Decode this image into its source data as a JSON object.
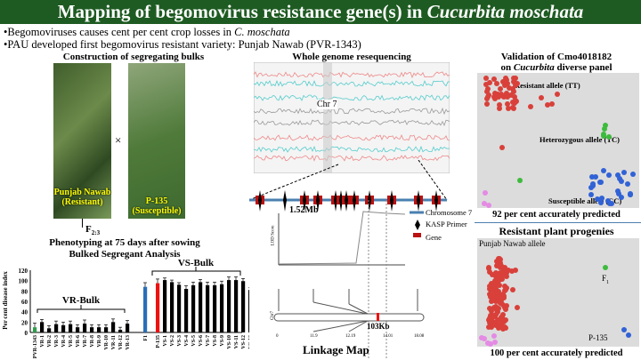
{
  "title": {
    "text_pre": "Mapping of begomovirus resistance gene(s) in ",
    "text_italic": "Cucurbita moschata"
  },
  "bullets": [
    {
      "pre": "•Begomoviruses causes cent per cent crop losses in ",
      "italic": "C. moschata",
      "post": ""
    },
    {
      "pre": "•PAU developed first begomovirus resistant variety: Punjab Nawab (PVR-1343)",
      "italic": "",
      "post": ""
    }
  ],
  "left": {
    "heading": "Construction of segregating bulks",
    "photo1_label": "Punjab Nawab (Resistant)",
    "cross": "×",
    "photo2_label": "P-135 (Susceptible)",
    "f23": "F",
    "f23_sub": "2:3",
    "phenotyping": "Phenotyping at 75 days after sowing",
    "bsa": "Bulked Segregant Analysis"
  },
  "chart_data": {
    "type": "bar",
    "title": "",
    "ylabel": "Per cent disease index",
    "ylim": [
      0,
      120
    ],
    "yticks": [
      0,
      20,
      40,
      60,
      80,
      100,
      120
    ],
    "categories": [
      "PVR-1343",
      "VR-1",
      "VR-2",
      "VR-3",
      "VR-4",
      "VR-5",
      "VR-6",
      "VR-7",
      "VR-8",
      "VR-9",
      "VR-10",
      "VR-11",
      "VR-12",
      "VR-13",
      "F1",
      "P-135",
      "VS-1",
      "VS-2",
      "VS-3",
      "VS-4",
      "VS-5",
      "VS-6",
      "VS-7",
      "VS-8",
      "VS-9",
      "VS-10",
      "VS-11",
      "VS-12",
      "VS-13"
    ],
    "values": [
      10,
      20,
      8,
      16,
      14,
      16,
      10,
      17,
      10,
      10,
      10,
      20,
      5,
      17,
      88,
      95,
      101,
      97,
      92,
      84,
      91,
      97,
      91,
      91,
      93,
      101,
      101,
      99,
      82
    ],
    "errors": [
      8,
      5,
      5,
      6,
      6,
      6,
      5,
      7,
      5,
      5,
      5,
      6,
      5,
      6,
      8,
      8,
      4,
      4,
      4,
      6,
      6,
      5,
      6,
      6,
      6,
      6,
      6,
      5,
      4
    ],
    "colors": {
      "PVR-1343": "#2e9e4a",
      "F1": "#2a6fb5",
      "P-135": "#e11",
      "default": "#000"
    },
    "annotations": [
      "VR-Bulk",
      "VS-Bulk"
    ],
    "grid": false
  },
  "middle": {
    "heading": "Whole genome resequencing",
    "chr_label": "Chr 7",
    "region": "1.52Mb",
    "legend": [
      "Chromosome 7",
      "KASP Primer",
      "Gene"
    ],
    "lod_label": "LOD Score",
    "lod_ticks": [
      "0",
      "10",
      "20",
      "30"
    ],
    "chr_axis": "Chr7",
    "map_positions": [
      "0",
      "11.9",
      "12.19",
      "14.01",
      "18.08"
    ],
    "interval": "103Kb",
    "map_title": "Linkage Map"
  },
  "right": {
    "heading1": "Validation of Cmo4018182",
    "heading2_pre": "on ",
    "heading2_italic": "Cucurbita",
    "heading2_post": " diverse panel",
    "labels": [
      "Resistant allele (TT)",
      "Heterozygous  allele (TC)",
      "Susceptible allele (CC)"
    ],
    "result1": "92 per cent accurately predicted",
    "heading3": "Resistant plant progenies",
    "pn_label": "Punjab Nawab allele",
    "f1": "F",
    "f1_sub": "1",
    "p135": "P-135",
    "result2": "100 per cent accurately predicted",
    "colors": {
      "resistant": "#d9403a",
      "het": "#3dbb3d",
      "susceptible": "#3162d6",
      "ntc": "#e58ae5"
    }
  }
}
